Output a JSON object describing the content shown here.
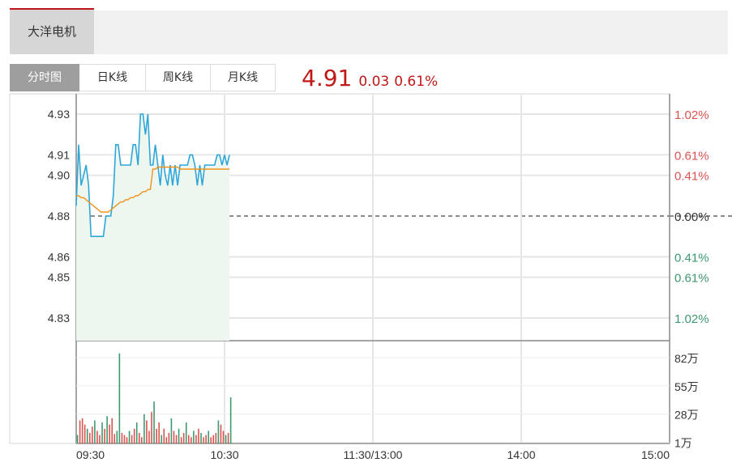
{
  "stock": {
    "name": "大洋电机"
  },
  "tabs": [
    {
      "label": "分时图",
      "active": true
    },
    {
      "label": "日K线",
      "active": false
    },
    {
      "label": "周K线",
      "active": false
    },
    {
      "label": "月K线",
      "active": false
    }
  ],
  "quote": {
    "price": "4.91",
    "change": "0.03",
    "change_pct": "0.61%"
  },
  "colors": {
    "up": "#d9534f",
    "down": "#3d9970",
    "price_line": "#2ea7d8",
    "avg_line": "#f0931e",
    "area_fill": "#eef6f0",
    "accent": "#c01818"
  },
  "chart_data": {
    "type": "line",
    "title": "",
    "x_ticks": [
      "09:30",
      "10:30",
      "11:30/13:00",
      "14:00",
      "15:00"
    ],
    "price_ticks": [
      4.93,
      4.91,
      4.9,
      4.88,
      4.86,
      4.85,
      4.83
    ],
    "price_tick_labels": [
      "4.93",
      "4.91",
      "4.90",
      "4.88",
      "4.86",
      "4.85",
      "4.83"
    ],
    "pct_tick_labels": [
      "1.02%",
      "0.61%",
      "0.41%",
      "0.00%",
      "0.41%",
      "0.61%",
      "1.02%"
    ],
    "pct_tick_colors": [
      "up",
      "up",
      "up",
      "flat",
      "down",
      "down",
      "down"
    ],
    "prev_close": 4.88,
    "volume_tick_labels": [
      "82万",
      "55万",
      "28万",
      "1万"
    ],
    "volume_ticks_wan": [
      82,
      55,
      28,
      1
    ],
    "volume_max_wan": 95,
    "series": [
      {
        "name": "",
        "kind": "price",
        "values": [
          4.885,
          4.915,
          4.895,
          4.9,
          4.905,
          4.895,
          4.87,
          4.87,
          4.87,
          4.87,
          4.87,
          4.87,
          4.88,
          4.88,
          4.88,
          4.89,
          4.915,
          4.915,
          4.905,
          4.905,
          4.905,
          4.905,
          4.905,
          4.915,
          4.915,
          4.905,
          4.93,
          4.93,
          4.92,
          4.93,
          4.905,
          4.905,
          4.915,
          4.905,
          4.895,
          4.91,
          4.9,
          4.895,
          4.905,
          4.895,
          4.905,
          4.895,
          4.905,
          4.905,
          4.905,
          4.905,
          4.91,
          4.91,
          4.905,
          4.895,
          4.905,
          4.895,
          4.905,
          4.905,
          4.905,
          4.905,
          4.905,
          4.91,
          4.91,
          4.905,
          4.91,
          4.905,
          4.91
        ]
      },
      {
        "name": "",
        "kind": "average",
        "values": [
          4.89,
          4.89,
          4.889,
          4.889,
          4.888,
          4.887,
          4.886,
          4.885,
          4.884,
          4.883,
          4.882,
          4.882,
          4.882,
          4.882,
          4.883,
          4.884,
          4.885,
          4.886,
          4.887,
          4.887,
          4.888,
          4.888,
          4.889,
          4.889,
          4.89,
          4.89,
          4.891,
          4.892,
          4.892,
          4.893,
          4.893,
          4.903,
          4.903,
          4.904,
          4.904,
          4.904,
          4.904,
          4.904,
          4.904,
          4.904,
          4.904,
          4.904,
          4.903,
          4.903,
          4.903,
          4.903,
          4.903,
          4.903,
          4.903,
          4.903,
          4.903,
          4.903,
          4.903,
          4.903,
          4.903,
          4.903,
          4.903,
          4.903,
          4.903,
          4.903,
          4.903,
          4.903,
          4.903
        ]
      }
    ],
    "volume": [
      {
        "x": 0,
        "v": 8,
        "c": "down"
      },
      {
        "x": 1,
        "v": 22,
        "c": "up"
      },
      {
        "x": 2,
        "v": 24,
        "c": "up"
      },
      {
        "x": 3,
        "v": 18,
        "c": "up"
      },
      {
        "x": 4,
        "v": 14,
        "c": "down"
      },
      {
        "x": 5,
        "v": 10,
        "c": "up"
      },
      {
        "x": 6,
        "v": 16,
        "c": "up"
      },
      {
        "x": 7,
        "v": 22,
        "c": "down"
      },
      {
        "x": 8,
        "v": 12,
        "c": "up"
      },
      {
        "x": 9,
        "v": 8,
        "c": "up"
      },
      {
        "x": 10,
        "v": 20,
        "c": "down"
      },
      {
        "x": 11,
        "v": 14,
        "c": "up"
      },
      {
        "x": 12,
        "v": 26,
        "c": "down"
      },
      {
        "x": 13,
        "v": 18,
        "c": "up"
      },
      {
        "x": 14,
        "v": 24,
        "c": "up"
      },
      {
        "x": 15,
        "v": 9,
        "c": "up"
      },
      {
        "x": 16,
        "v": 12,
        "c": "down"
      },
      {
        "x": 17,
        "v": 86,
        "c": "down"
      },
      {
        "x": 18,
        "v": 10,
        "c": "up"
      },
      {
        "x": 19,
        "v": 8,
        "c": "up"
      },
      {
        "x": 20,
        "v": 6,
        "c": "up"
      },
      {
        "x": 21,
        "v": 12,
        "c": "down"
      },
      {
        "x": 22,
        "v": 8,
        "c": "up"
      },
      {
        "x": 23,
        "v": 14,
        "c": "up"
      },
      {
        "x": 24,
        "v": 20,
        "c": "down"
      },
      {
        "x": 25,
        "v": 10,
        "c": "up"
      },
      {
        "x": 26,
        "v": 6,
        "c": "up"
      },
      {
        "x": 27,
        "v": 28,
        "c": "down"
      },
      {
        "x": 28,
        "v": 22,
        "c": "up"
      },
      {
        "x": 29,
        "v": 12,
        "c": "up"
      },
      {
        "x": 30,
        "v": 30,
        "c": "up"
      },
      {
        "x": 31,
        "v": 40,
        "c": "down"
      },
      {
        "x": 32,
        "v": 14,
        "c": "up"
      },
      {
        "x": 33,
        "v": 20,
        "c": "up"
      },
      {
        "x": 34,
        "v": 8,
        "c": "down"
      },
      {
        "x": 35,
        "v": 14,
        "c": "up"
      },
      {
        "x": 36,
        "v": 6,
        "c": "up"
      },
      {
        "x": 37,
        "v": 10,
        "c": "up"
      },
      {
        "x": 38,
        "v": 24,
        "c": "down"
      },
      {
        "x": 39,
        "v": 12,
        "c": "up"
      },
      {
        "x": 40,
        "v": 8,
        "c": "up"
      },
      {
        "x": 41,
        "v": 14,
        "c": "down"
      },
      {
        "x": 42,
        "v": 6,
        "c": "up"
      },
      {
        "x": 43,
        "v": 10,
        "c": "up"
      },
      {
        "x": 44,
        "v": 20,
        "c": "down"
      },
      {
        "x": 45,
        "v": 8,
        "c": "up"
      },
      {
        "x": 46,
        "v": 6,
        "c": "up"
      },
      {
        "x": 47,
        "v": 12,
        "c": "down"
      },
      {
        "x": 48,
        "v": 8,
        "c": "up"
      },
      {
        "x": 49,
        "v": 14,
        "c": "up"
      },
      {
        "x": 50,
        "v": 10,
        "c": "down"
      },
      {
        "x": 51,
        "v": 6,
        "c": "up"
      },
      {
        "x": 52,
        "v": 8,
        "c": "up"
      },
      {
        "x": 53,
        "v": 12,
        "c": "down"
      },
      {
        "x": 54,
        "v": 6,
        "c": "up"
      },
      {
        "x": 55,
        "v": 8,
        "c": "up"
      },
      {
        "x": 56,
        "v": 10,
        "c": "up"
      },
      {
        "x": 57,
        "v": 22,
        "c": "down"
      },
      {
        "x": 58,
        "v": 18,
        "c": "up"
      },
      {
        "x": 59,
        "v": 12,
        "c": "up"
      },
      {
        "x": 60,
        "v": 8,
        "c": "down"
      },
      {
        "x": 61,
        "v": 10,
        "c": "up"
      },
      {
        "x": 62,
        "v": 44,
        "c": "down"
      }
    ],
    "session_minutes": 240,
    "minutes_shown": 63
  }
}
